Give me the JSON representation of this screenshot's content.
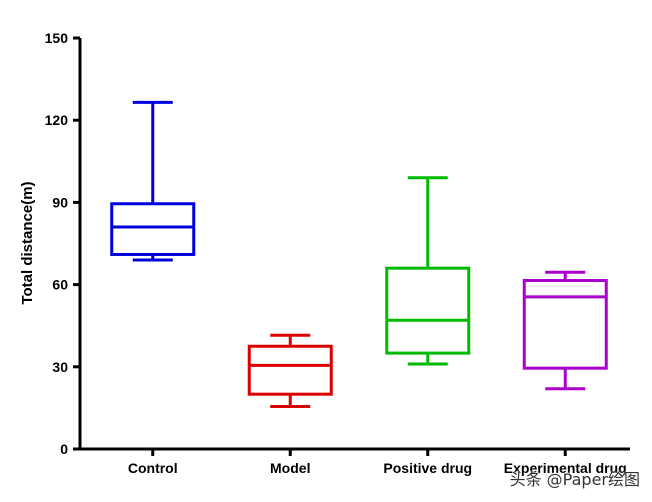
{
  "chart_data": {
    "type": "box",
    "ylabel": "Total distance(m)",
    "ylim": [
      0,
      150
    ],
    "yticks": [
      0,
      30,
      60,
      90,
      120,
      150
    ],
    "categories": [
      "Control",
      "Model",
      "Positive drug",
      "Experimental drug"
    ],
    "boxes": [
      {
        "category": "Control",
        "min": 69,
        "q1": 71,
        "median": 81,
        "q3": 89.5,
        "max": 126.5,
        "color": "#0000dd"
      },
      {
        "category": "Model",
        "min": 15.5,
        "q1": 20,
        "median": 30.5,
        "q3": 37.5,
        "max": 41.5,
        "color": "#dd0000"
      },
      {
        "category": "Positive drug",
        "min": 31,
        "q1": 35,
        "median": 47,
        "q3": 66,
        "max": 99,
        "color": "#00bb00"
      },
      {
        "category": "Experimental drug",
        "min": 22,
        "q1": 29.5,
        "median": 55.5,
        "q3": 61.5,
        "max": 64.5,
        "color": "#aa00cc"
      }
    ],
    "grid": false,
    "legend": "none"
  },
  "watermark": "头条 @Paper绘图"
}
